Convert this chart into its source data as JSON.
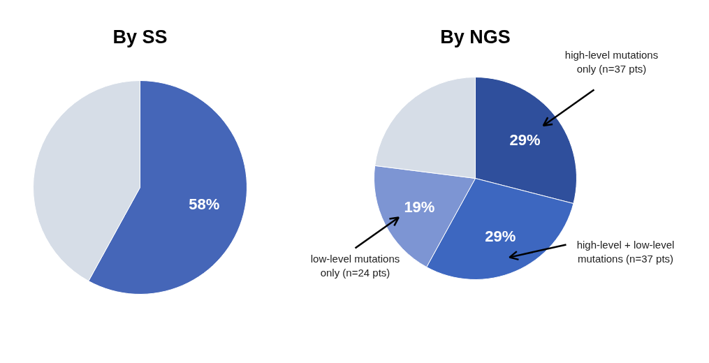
{
  "chart_data": [
    {
      "type": "pie",
      "title": "By SS",
      "categories": [
        null,
        null
      ],
      "values": [
        58,
        42
      ],
      "colors": [
        "#4566b8",
        "#d6dde7"
      ],
      "value_labels": [
        "58%",
        null
      ]
    },
    {
      "type": "pie",
      "title": "By NGS",
      "categories": [
        "high-level mutations\nonly (n=37 pts)",
        "high-level + low-level\nmutations (n=37 pts)",
        "low-level mutations\nonly (n=24 pts)",
        null
      ],
      "values": [
        29,
        29,
        19,
        23
      ],
      "colors": [
        "#2f4f9c",
        "#3d67c0",
        "#7d95d3",
        "#d6dde7"
      ],
      "value_labels": [
        "29%",
        "29%",
        "19%",
        null
      ]
    }
  ]
}
